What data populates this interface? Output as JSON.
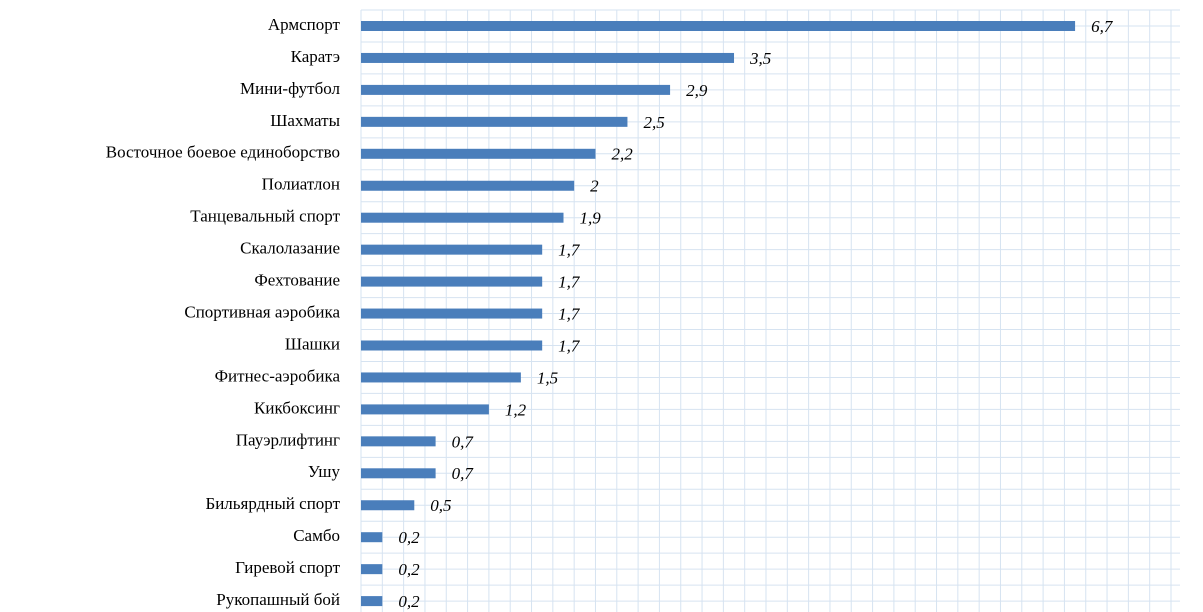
{
  "chart_data": {
    "type": "barh",
    "categories": [
      "Армспорт",
      "Каратэ",
      "Мини-футбол",
      "Шахматы",
      "Восточное боевое единоборство",
      "Полиатлон",
      "Танцевальный спорт",
      "Скалолазание",
      "Фехтование",
      "Спортивная аэробика",
      "Шашки",
      "Фитнес-аэробика",
      "Кикбоксинг",
      "Пауэрлифтинг",
      "Ушу",
      "Бильярдный спорт",
      "Самбо",
      "Гиревой спорт",
      "Рукопашный бой"
    ],
    "values": [
      6.7,
      3.5,
      2.9,
      2.5,
      2.2,
      2,
      1.9,
      1.7,
      1.7,
      1.7,
      1.7,
      1.5,
      1.2,
      0.7,
      0.7,
      0.5,
      0.2,
      0.2,
      0.2
    ],
    "value_labels": [
      "6,7",
      "3,5",
      "2,9",
      "2,5",
      "2,2",
      "2",
      "1,9",
      "1,7",
      "1,7",
      "1,7",
      "1,7",
      "1,5",
      "1,2",
      "0,7",
      "0,7",
      "0,5",
      "0,2",
      "0,2",
      "0,2"
    ],
    "color": "#4a7ebb",
    "xlim": [
      0,
      7.6
    ],
    "xticks": [
      0,
      0.2,
      0.4,
      0.6,
      0.8,
      1,
      1.2,
      1.4,
      1.6,
      1.8,
      2,
      2.2,
      2.4,
      2.6,
      2.8,
      3,
      3.2,
      3.4,
      3.6,
      3.8,
      4,
      4.2,
      4.4,
      4.6,
      4.8,
      5,
      5.2,
      5.4,
      5.6,
      5.8,
      6,
      6.2,
      6.4,
      6.6,
      6.8,
      7,
      7.2,
      7.4,
      7.6
    ],
    "grid": true
  }
}
